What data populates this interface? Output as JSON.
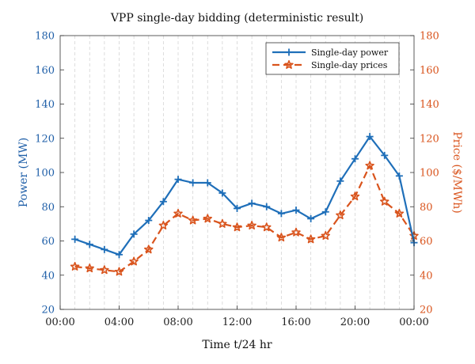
{
  "chart_data": {
    "type": "line",
    "title": "VPP single-day bidding (deterministic result)",
    "xlabel": "Time t/24 hr",
    "ylabel_left": "Power (MW)",
    "ylabel_right": "Price ($/MWh)",
    "x_tick_labels": [
      "00:00",
      "04:00",
      "08:00",
      "12:00",
      "16:00",
      "20:00",
      "00:00"
    ],
    "x": [
      1,
      2,
      3,
      4,
      5,
      6,
      7,
      8,
      9,
      10,
      11,
      12,
      13,
      14,
      15,
      16,
      17,
      18,
      19,
      20,
      21,
      22,
      23,
      24
    ],
    "xlim": [
      0,
      24
    ],
    "ylim_left": [
      20,
      180
    ],
    "ylim_right": [
      20,
      180
    ],
    "y_ticks": [
      20,
      40,
      60,
      80,
      100,
      120,
      140,
      160,
      180
    ],
    "grid": "dashed vertical",
    "legend_position": "top-right",
    "series": [
      {
        "name": "Single-day power",
        "axis": "left",
        "color": "#1f6fb9",
        "marker": "plus",
        "line": "solid",
        "values": [
          61,
          58,
          55,
          52,
          64,
          72,
          83,
          96,
          94,
          94,
          88,
          79,
          82,
          80,
          76,
          78,
          73,
          77,
          95,
          108,
          121,
          110,
          98,
          59
        ]
      },
      {
        "name": "Single-day prices",
        "axis": "right",
        "color": "#d9541d",
        "marker": "star",
        "line": "dashed",
        "values": [
          45,
          44,
          43,
          42,
          48,
          55,
          69,
          76,
          72,
          73,
          70,
          68,
          69,
          68,
          62,
          65,
          61,
          63,
          75,
          86,
          104,
          83,
          76,
          63
        ]
      }
    ]
  }
}
